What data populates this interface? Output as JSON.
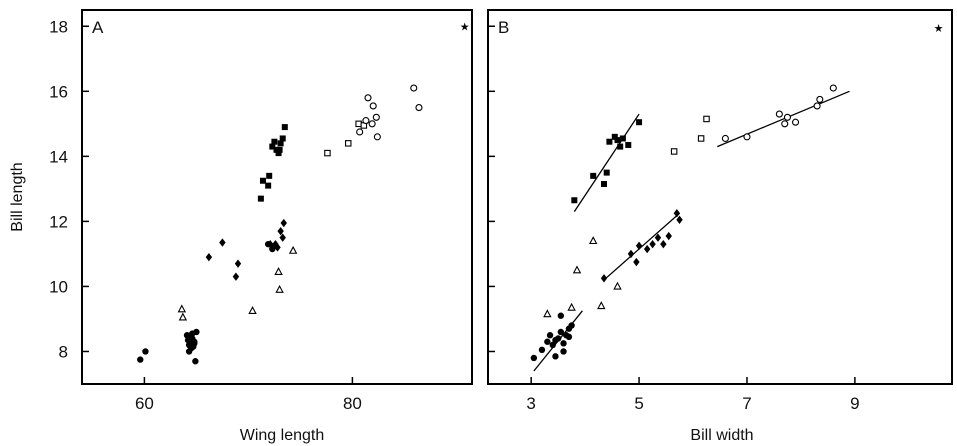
{
  "chart_data": [
    {
      "type": "scatter",
      "panel_label": "A",
      "xlabel": "Wing length",
      "ylabel": "Bill length",
      "xlim": [
        54,
        91.5
      ],
      "ylim": [
        7,
        18.5
      ],
      "xticks": [
        60,
        80
      ],
      "yticks": [
        8,
        10,
        12,
        14,
        16,
        18
      ],
      "grid": false,
      "series": [
        {
          "marker": "filled-circle",
          "points": [
            [
              59.6,
              7.75
            ],
            [
              60.1,
              8.0
            ],
            [
              64.1,
              8.5
            ],
            [
              64.3,
              8.2
            ],
            [
              64.5,
              8.1
            ],
            [
              64.6,
              8.4
            ],
            [
              64.8,
              8.3
            ],
            [
              65.0,
              8.6
            ],
            [
              64.2,
              8.35
            ],
            [
              64.4,
              8.45
            ],
            [
              64.7,
              8.15
            ],
            [
              64.9,
              7.7
            ],
            [
              64.3,
              8.0
            ],
            [
              64.6,
              8.55
            ],
            [
              64.8,
              8.25
            ],
            [
              64.5,
              8.3
            ]
          ]
        },
        {
          "marker": "open-triangle",
          "points": [
            [
              63.6,
              9.3
            ],
            [
              63.7,
              9.05
            ],
            [
              70.4,
              9.25
            ],
            [
              72.9,
              10.45
            ],
            [
              73.0,
              9.9
            ],
            [
              74.3,
              11.1
            ]
          ]
        },
        {
          "marker": "filled-diamond",
          "points": [
            [
              66.2,
              10.9
            ],
            [
              67.5,
              11.35
            ],
            [
              68.8,
              10.3
            ],
            [
              69.0,
              10.7
            ],
            [
              72.1,
              11.3
            ],
            [
              72.4,
              11.2
            ],
            [
              72.6,
              11.3
            ],
            [
              72.8,
              11.2
            ],
            [
              73.1,
              11.7
            ],
            [
              73.3,
              11.5
            ],
            [
              73.4,
              11.95
            ]
          ]
        },
        {
          "marker": "filled-circle",
          "points": [
            [
              71.9,
              11.3
            ],
            [
              72.3,
              11.15
            ]
          ]
        },
        {
          "marker": "filled-square",
          "points": [
            [
              71.2,
              12.7
            ],
            [
              71.4,
              13.25
            ],
            [
              71.9,
              13.1
            ],
            [
              72.0,
              13.4
            ],
            [
              72.3,
              14.3
            ],
            [
              72.5,
              14.45
            ],
            [
              72.7,
              14.2
            ],
            [
              72.9,
              14.1
            ],
            [
              73.1,
              14.4
            ],
            [
              73.3,
              14.55
            ],
            [
              73.0,
              14.2
            ],
            [
              73.5,
              14.9
            ]
          ]
        },
        {
          "marker": "open-square",
          "points": [
            [
              77.6,
              14.1
            ],
            [
              79.6,
              14.4
            ],
            [
              80.6,
              15.0
            ],
            [
              81.1,
              14.95
            ]
          ]
        },
        {
          "marker": "open-circle",
          "points": [
            [
              80.7,
              14.75
            ],
            [
              81.3,
              15.1
            ],
            [
              81.5,
              15.8
            ],
            [
              81.9,
              15.0
            ],
            [
              82.0,
              15.55
            ],
            [
              82.3,
              15.2
            ],
            [
              82.4,
              14.6
            ],
            [
              85.9,
              16.1
            ],
            [
              86.4,
              15.5
            ]
          ]
        },
        {
          "marker": "star",
          "points": [
            [
              90.8,
              18.0
            ]
          ]
        }
      ]
    },
    {
      "type": "scatter",
      "panel_label": "B",
      "xlabel": "Bill width",
      "ylabel": "",
      "xlim": [
        2.2,
        10.8
      ],
      "ylim": [
        7,
        18.5
      ],
      "xticks": [
        3,
        5,
        7,
        9
      ],
      "yticks": [
        8,
        10,
        12,
        14,
        16,
        18
      ],
      "grid": false,
      "fit_lines": [
        {
          "from": [
            3.05,
            7.4
          ],
          "to": [
            3.95,
            9.25
          ]
        },
        {
          "from": [
            3.8,
            12.3
          ],
          "to": [
            5.0,
            15.3
          ]
        },
        {
          "from": [
            4.35,
            10.2
          ],
          "to": [
            5.75,
            12.25
          ]
        },
        {
          "from": [
            6.45,
            14.3
          ],
          "to": [
            8.9,
            16.0
          ]
        }
      ],
      "series": [
        {
          "marker": "filled-circle",
          "points": [
            [
              3.05,
              7.8
            ],
            [
              3.2,
              8.05
            ],
            [
              3.3,
              8.3
            ],
            [
              3.35,
              8.5
            ],
            [
              3.4,
              8.2
            ],
            [
              3.45,
              7.85
            ],
            [
              3.5,
              8.4
            ],
            [
              3.55,
              8.6
            ],
            [
              3.6,
              8.25
            ],
            [
              3.65,
              8.5
            ],
            [
              3.7,
              8.7
            ],
            [
              3.75,
              8.8
            ],
            [
              3.55,
              9.1
            ],
            [
              3.45,
              8.35
            ],
            [
              3.6,
              8.0
            ],
            [
              3.7,
              8.45
            ]
          ]
        },
        {
          "marker": "open-triangle",
          "points": [
            [
              3.3,
              9.15
            ],
            [
              3.75,
              9.35
            ],
            [
              3.85,
              10.5
            ],
            [
              4.15,
              11.4
            ],
            [
              4.3,
              9.4
            ],
            [
              4.6,
              10.0
            ]
          ]
        },
        {
          "marker": "filled-diamond",
          "points": [
            [
              4.35,
              10.25
            ],
            [
              4.85,
              11.0
            ],
            [
              5.0,
              11.25
            ],
            [
              5.15,
              11.15
            ],
            [
              5.25,
              11.3
            ],
            [
              5.35,
              11.5
            ],
            [
              5.45,
              11.3
            ],
            [
              5.55,
              11.55
            ],
            [
              5.7,
              12.25
            ],
            [
              5.75,
              12.05
            ],
            [
              4.95,
              10.75
            ]
          ]
        },
        {
          "marker": "filled-square",
          "points": [
            [
              3.8,
              12.65
            ],
            [
              4.15,
              13.4
            ],
            [
              4.35,
              13.15
            ],
            [
              4.4,
              13.5
            ],
            [
              4.45,
              14.45
            ],
            [
              4.55,
              14.6
            ],
            [
              4.6,
              14.5
            ],
            [
              4.65,
              14.3
            ],
            [
              4.7,
              14.55
            ],
            [
              4.8,
              14.35
            ],
            [
              5.0,
              15.05
            ]
          ]
        },
        {
          "marker": "open-square",
          "points": [
            [
              5.65,
              14.15
            ],
            [
              6.15,
              14.55
            ],
            [
              6.25,
              15.15
            ]
          ]
        },
        {
          "marker": "open-circle",
          "points": [
            [
              6.6,
              14.55
            ],
            [
              7.0,
              14.6
            ],
            [
              7.6,
              15.3
            ],
            [
              7.7,
              15.0
            ],
            [
              7.75,
              15.2
            ],
            [
              7.9,
              15.05
            ],
            [
              8.3,
              15.55
            ],
            [
              8.35,
              15.75
            ],
            [
              8.6,
              16.1
            ]
          ]
        },
        {
          "marker": "star",
          "points": [
            [
              10.55,
              17.95
            ]
          ]
        }
      ]
    }
  ]
}
